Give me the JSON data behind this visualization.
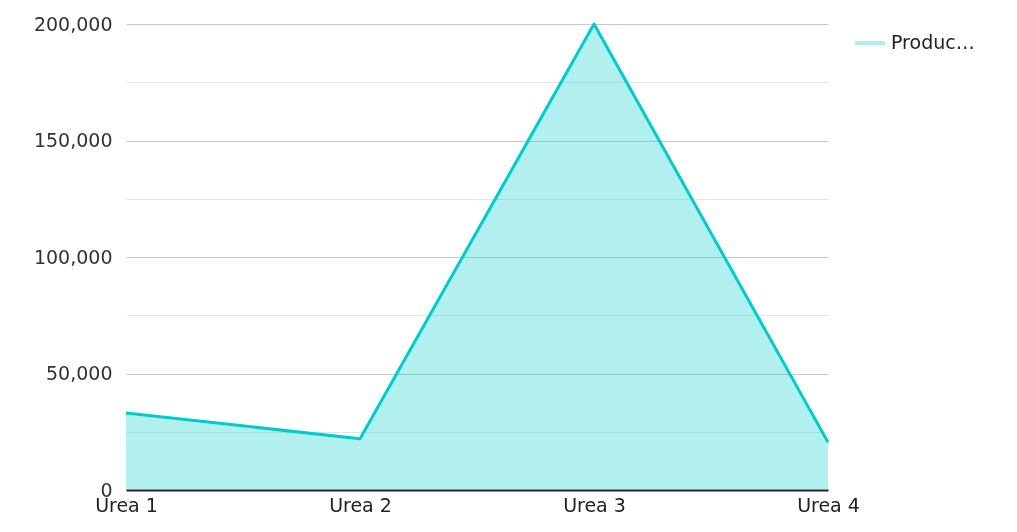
{
  "chart_data": {
    "type": "area",
    "categories": [
      "Urea 1",
      "Urea 2",
      "Urea 3",
      "Urea 4"
    ],
    "series": [
      {
        "name": "Produc…",
        "color": "#00cccc",
        "values": [
          33000,
          22000,
          200000,
          20500
        ]
      }
    ],
    "ylim": [
      0,
      200000
    ],
    "yticks": [
      0,
      {
        "value": 25000,
        "label": null
      },
      {
        "value": 50000,
        "label": "50,000"
      },
      {
        "value": 75000,
        "label": null
      },
      {
        "value": 100000,
        "label": "100,000"
      },
      {
        "value": 125000,
        "label": null
      },
      {
        "value": 150000,
        "label": "150,000"
      },
      {
        "value": 175000,
        "label": null
      },
      {
        "value": 200000,
        "label": "200,000"
      }
    ],
    "grid": "y",
    "legend": "top right"
  }
}
